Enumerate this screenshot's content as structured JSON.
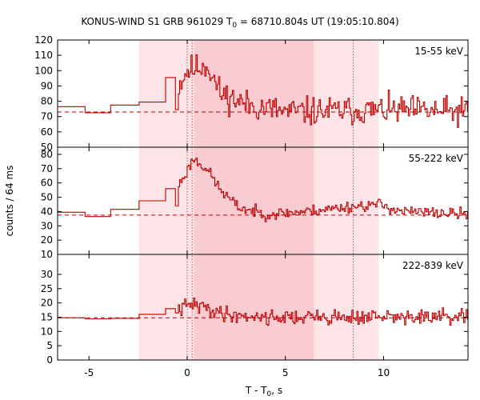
{
  "chart_data": {
    "type": "line",
    "title_main": "KONUS-WIND S1 GRB 961029 T",
    "title_sub": "0",
    "title_rest": " = 68710.804s UT (19:05:10.804)",
    "xlabel_main": "T - T",
    "xlabel_sub": "0",
    "xlabel_rest": ", s",
    "ylabel": "counts / 64 ms",
    "xlim": [
      -6.6,
      14.3
    ],
    "xticks": [
      -5,
      0,
      5,
      10
    ],
    "xtick_labels": [
      "-5",
      "0",
      "5",
      "10"
    ],
    "shaded_regions": [
      [
        -2.45,
        9.75
      ],
      [
        0.35,
        6.45
      ]
    ],
    "dotted_lines": [
      0.0,
      0.25,
      8.45
    ],
    "colors": {
      "line": "#bb0000",
      "light_shade": "#fde4e6",
      "dark_shade": "#f9ccd2",
      "axis": "#000000",
      "dotted": "#b03030"
    },
    "panels": [
      {
        "label": "15-55 keV",
        "ylim": [
          50,
          120
        ],
        "yticks": [
          50,
          60,
          70,
          80,
          90,
          100,
          110,
          120
        ],
        "ytick_labels": [
          "50",
          "60",
          "70",
          "80",
          "90",
          "100",
          "110",
          "120"
        ],
        "background": 73,
        "coarse_bins": [
          [
            -6.6,
            -5.2,
            76.5
          ],
          [
            -5.2,
            -3.9,
            72.5
          ],
          [
            -3.9,
            -2.45,
            77.5
          ],
          [
            -2.45,
            -1.1,
            79.5
          ],
          [
            -1.1,
            -0.6,
            95.5
          ],
          [
            -0.6,
            -0.45,
            74.5
          ]
        ],
        "fine_start": -0.45,
        "fine_dt": 0.064,
        "fine_profile": [
          [
            -0.45,
            90
          ],
          [
            0.0,
            100
          ],
          [
            0.3,
            101
          ],
          [
            1.0,
            104
          ],
          [
            1.7,
            85
          ],
          [
            3.0,
            78
          ],
          [
            5.0,
            73
          ],
          [
            7.0,
            73.5
          ],
          [
            9.0,
            74
          ],
          [
            11.0,
            74
          ],
          [
            14.3,
            73
          ]
        ],
        "noise": 14,
        "seed": 11
      },
      {
        "label": "55-222 keV",
        "ylim": [
          10,
          85
        ],
        "yticks": [
          10,
          20,
          30,
          40,
          50,
          60,
          70,
          80
        ],
        "ytick_labels": [
          "10",
          "20",
          "30",
          "40",
          "50",
          "60",
          "70",
          "80"
        ],
        "background": 37.5,
        "coarse_bins": [
          [
            -6.6,
            -5.2,
            39.5
          ],
          [
            -5.2,
            -3.9,
            36.5
          ],
          [
            -3.9,
            -2.45,
            41.5
          ],
          [
            -2.45,
            -1.1,
            47.5
          ],
          [
            -1.1,
            -0.6,
            56
          ],
          [
            -0.6,
            -0.45,
            44
          ]
        ],
        "fine_start": -0.45,
        "fine_dt": 0.064,
        "fine_profile": [
          [
            -0.45,
            58
          ],
          [
            0.0,
            68
          ],
          [
            0.3,
            77
          ],
          [
            1.0,
            70
          ],
          [
            1.7,
            55
          ],
          [
            2.6,
            43
          ],
          [
            4.0,
            38
          ],
          [
            6.0,
            40
          ],
          [
            8.0,
            43
          ],
          [
            9.8,
            45
          ],
          [
            11.0,
            40
          ],
          [
            14.3,
            38
          ]
        ],
        "noise": 6,
        "seed": 23
      },
      {
        "label": "222-839 keV",
        "ylim": [
          0,
          37
        ],
        "yticks": [
          0,
          5,
          10,
          15,
          20,
          25,
          30
        ],
        "ytick_labels": [
          "0",
          "5",
          "10",
          "15",
          "20",
          "25",
          "30"
        ],
        "background": 14.8,
        "coarse_bins": [
          [
            -6.6,
            -5.2,
            14.8
          ],
          [
            -5.2,
            -3.9,
            14.4
          ],
          [
            -3.9,
            -2.45,
            14.6
          ],
          [
            -2.45,
            -1.1,
            16.0
          ],
          [
            -1.1,
            -0.6,
            18.0
          ],
          [
            -0.6,
            -0.45,
            16.5
          ]
        ],
        "fine_start": -0.45,
        "fine_dt": 0.064,
        "fine_profile": [
          [
            -0.45,
            17.5
          ],
          [
            0.2,
            19.5
          ],
          [
            0.8,
            18.5
          ],
          [
            2.0,
            16.0
          ],
          [
            4.0,
            15.0
          ],
          [
            8.0,
            15.0
          ],
          [
            14.3,
            15.0
          ]
        ],
        "noise": 4,
        "seed": 41
      }
    ]
  }
}
